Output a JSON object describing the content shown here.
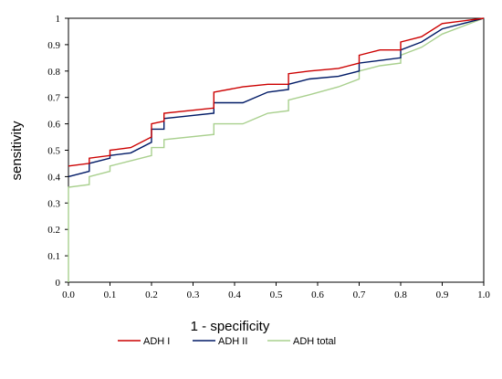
{
  "chart_data": {
    "type": "line",
    "xlabel": "1 - specificity",
    "ylabel": "sensitivity",
    "xlim": [
      0,
      1
    ],
    "ylim": [
      0,
      1
    ],
    "x_ticks": [
      "0.0",
      "0.1",
      "0.2",
      "0.3",
      "0.4",
      "0.5",
      "0.6",
      "0.7",
      "0.8",
      "0.9",
      "1.0"
    ],
    "y_ticks": [
      "0",
      "0.1",
      "0.2",
      "0.3",
      "0.4",
      "0.5",
      "0.6",
      "0.7",
      "0.8",
      "0.9",
      "1"
    ],
    "grid": false,
    "legend_position": "bottom",
    "series": [
      {
        "name": "ADH I",
        "color": "#cc0000",
        "points": [
          [
            0,
            0.44
          ],
          [
            0.05,
            0.45
          ],
          [
            0.05,
            0.47
          ],
          [
            0.1,
            0.48
          ],
          [
            0.1,
            0.5
          ],
          [
            0.15,
            0.51
          ],
          [
            0.2,
            0.55
          ],
          [
            0.2,
            0.6
          ],
          [
            0.23,
            0.61
          ],
          [
            0.23,
            0.64
          ],
          [
            0.35,
            0.66
          ],
          [
            0.35,
            0.72
          ],
          [
            0.42,
            0.74
          ],
          [
            0.48,
            0.75
          ],
          [
            0.53,
            0.75
          ],
          [
            0.53,
            0.79
          ],
          [
            0.58,
            0.8
          ],
          [
            0.65,
            0.81
          ],
          [
            0.7,
            0.83
          ],
          [
            0.7,
            0.86
          ],
          [
            0.75,
            0.88
          ],
          [
            0.8,
            0.88
          ],
          [
            0.8,
            0.91
          ],
          [
            0.85,
            0.93
          ],
          [
            0.9,
            0.98
          ],
          [
            1,
            1
          ]
        ]
      },
      {
        "name": "ADH II",
        "color": "#001a66",
        "points": [
          [
            0,
            0.4
          ],
          [
            0.05,
            0.42
          ],
          [
            0.05,
            0.45
          ],
          [
            0.1,
            0.47
          ],
          [
            0.1,
            0.48
          ],
          [
            0.15,
            0.49
          ],
          [
            0.2,
            0.53
          ],
          [
            0.2,
            0.58
          ],
          [
            0.23,
            0.58
          ],
          [
            0.23,
            0.62
          ],
          [
            0.35,
            0.64
          ],
          [
            0.35,
            0.68
          ],
          [
            0.42,
            0.68
          ],
          [
            0.48,
            0.72
          ],
          [
            0.53,
            0.73
          ],
          [
            0.53,
            0.75
          ],
          [
            0.58,
            0.77
          ],
          [
            0.65,
            0.78
          ],
          [
            0.7,
            0.8
          ],
          [
            0.7,
            0.83
          ],
          [
            0.75,
            0.84
          ],
          [
            0.8,
            0.85
          ],
          [
            0.8,
            0.88
          ],
          [
            0.85,
            0.91
          ],
          [
            0.9,
            0.96
          ],
          [
            1,
            1
          ]
        ]
      },
      {
        "name": "ADH total",
        "color": "#a9d08e",
        "points": [
          [
            0,
            0
          ],
          [
            0,
            0.36
          ],
          [
            0.05,
            0.37
          ],
          [
            0.05,
            0.4
          ],
          [
            0.1,
            0.42
          ],
          [
            0.1,
            0.44
          ],
          [
            0.15,
            0.46
          ],
          [
            0.2,
            0.48
          ],
          [
            0.2,
            0.51
          ],
          [
            0.23,
            0.51
          ],
          [
            0.23,
            0.54
          ],
          [
            0.35,
            0.56
          ],
          [
            0.35,
            0.6
          ],
          [
            0.42,
            0.6
          ],
          [
            0.48,
            0.64
          ],
          [
            0.53,
            0.65
          ],
          [
            0.53,
            0.69
          ],
          [
            0.58,
            0.71
          ],
          [
            0.65,
            0.74
          ],
          [
            0.7,
            0.77
          ],
          [
            0.7,
            0.8
          ],
          [
            0.75,
            0.82
          ],
          [
            0.8,
            0.83
          ],
          [
            0.8,
            0.86
          ],
          [
            0.85,
            0.89
          ],
          [
            0.9,
            0.94
          ],
          [
            1,
            1
          ]
        ]
      }
    ]
  }
}
